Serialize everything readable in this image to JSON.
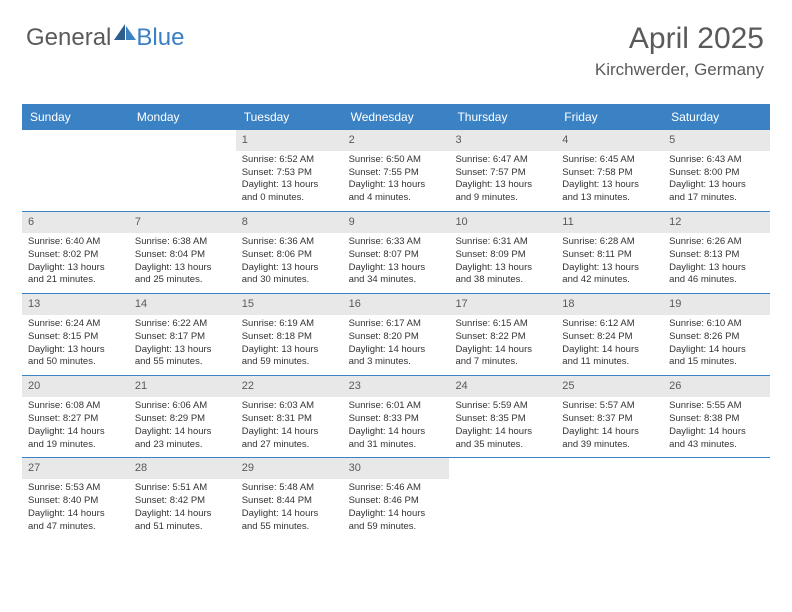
{
  "brand": {
    "part1": "General",
    "part2": "Blue"
  },
  "header": {
    "month_title": "April 2025",
    "location": "Kirchwerder, Germany"
  },
  "colors": {
    "header_bg": "#3b82c4",
    "header_text": "#ffffff",
    "daynum_bg": "#e8e8e8",
    "text": "#333333",
    "muted": "#5a5a5a",
    "row_border": "#3b82c4"
  },
  "typography": {
    "month_title_fontsize": 30,
    "location_fontsize": 17,
    "day_header_fontsize": 12,
    "daynum_fontsize": 11,
    "cell_fontsize": 9.5
  },
  "day_headers": [
    "Sunday",
    "Monday",
    "Tuesday",
    "Wednesday",
    "Thursday",
    "Friday",
    "Saturday"
  ],
  "weeks": [
    [
      {
        "empty": true
      },
      {
        "empty": true
      },
      {
        "day": "1",
        "sunrise": "Sunrise: 6:52 AM",
        "sunset": "Sunset: 7:53 PM",
        "daylight": "Daylight: 13 hours and 0 minutes."
      },
      {
        "day": "2",
        "sunrise": "Sunrise: 6:50 AM",
        "sunset": "Sunset: 7:55 PM",
        "daylight": "Daylight: 13 hours and 4 minutes."
      },
      {
        "day": "3",
        "sunrise": "Sunrise: 6:47 AM",
        "sunset": "Sunset: 7:57 PM",
        "daylight": "Daylight: 13 hours and 9 minutes."
      },
      {
        "day": "4",
        "sunrise": "Sunrise: 6:45 AM",
        "sunset": "Sunset: 7:58 PM",
        "daylight": "Daylight: 13 hours and 13 minutes."
      },
      {
        "day": "5",
        "sunrise": "Sunrise: 6:43 AM",
        "sunset": "Sunset: 8:00 PM",
        "daylight": "Daylight: 13 hours and 17 minutes."
      }
    ],
    [
      {
        "day": "6",
        "sunrise": "Sunrise: 6:40 AM",
        "sunset": "Sunset: 8:02 PM",
        "daylight": "Daylight: 13 hours and 21 minutes."
      },
      {
        "day": "7",
        "sunrise": "Sunrise: 6:38 AM",
        "sunset": "Sunset: 8:04 PM",
        "daylight": "Daylight: 13 hours and 25 minutes."
      },
      {
        "day": "8",
        "sunrise": "Sunrise: 6:36 AM",
        "sunset": "Sunset: 8:06 PM",
        "daylight": "Daylight: 13 hours and 30 minutes."
      },
      {
        "day": "9",
        "sunrise": "Sunrise: 6:33 AM",
        "sunset": "Sunset: 8:07 PM",
        "daylight": "Daylight: 13 hours and 34 minutes."
      },
      {
        "day": "10",
        "sunrise": "Sunrise: 6:31 AM",
        "sunset": "Sunset: 8:09 PM",
        "daylight": "Daylight: 13 hours and 38 minutes."
      },
      {
        "day": "11",
        "sunrise": "Sunrise: 6:28 AM",
        "sunset": "Sunset: 8:11 PM",
        "daylight": "Daylight: 13 hours and 42 minutes."
      },
      {
        "day": "12",
        "sunrise": "Sunrise: 6:26 AM",
        "sunset": "Sunset: 8:13 PM",
        "daylight": "Daylight: 13 hours and 46 minutes."
      }
    ],
    [
      {
        "day": "13",
        "sunrise": "Sunrise: 6:24 AM",
        "sunset": "Sunset: 8:15 PM",
        "daylight": "Daylight: 13 hours and 50 minutes."
      },
      {
        "day": "14",
        "sunrise": "Sunrise: 6:22 AM",
        "sunset": "Sunset: 8:17 PM",
        "daylight": "Daylight: 13 hours and 55 minutes."
      },
      {
        "day": "15",
        "sunrise": "Sunrise: 6:19 AM",
        "sunset": "Sunset: 8:18 PM",
        "daylight": "Daylight: 13 hours and 59 minutes."
      },
      {
        "day": "16",
        "sunrise": "Sunrise: 6:17 AM",
        "sunset": "Sunset: 8:20 PM",
        "daylight": "Daylight: 14 hours and 3 minutes."
      },
      {
        "day": "17",
        "sunrise": "Sunrise: 6:15 AM",
        "sunset": "Sunset: 8:22 PM",
        "daylight": "Daylight: 14 hours and 7 minutes."
      },
      {
        "day": "18",
        "sunrise": "Sunrise: 6:12 AM",
        "sunset": "Sunset: 8:24 PM",
        "daylight": "Daylight: 14 hours and 11 minutes."
      },
      {
        "day": "19",
        "sunrise": "Sunrise: 6:10 AM",
        "sunset": "Sunset: 8:26 PM",
        "daylight": "Daylight: 14 hours and 15 minutes."
      }
    ],
    [
      {
        "day": "20",
        "sunrise": "Sunrise: 6:08 AM",
        "sunset": "Sunset: 8:27 PM",
        "daylight": "Daylight: 14 hours and 19 minutes."
      },
      {
        "day": "21",
        "sunrise": "Sunrise: 6:06 AM",
        "sunset": "Sunset: 8:29 PM",
        "daylight": "Daylight: 14 hours and 23 minutes."
      },
      {
        "day": "22",
        "sunrise": "Sunrise: 6:03 AM",
        "sunset": "Sunset: 8:31 PM",
        "daylight": "Daylight: 14 hours and 27 minutes."
      },
      {
        "day": "23",
        "sunrise": "Sunrise: 6:01 AM",
        "sunset": "Sunset: 8:33 PM",
        "daylight": "Daylight: 14 hours and 31 minutes."
      },
      {
        "day": "24",
        "sunrise": "Sunrise: 5:59 AM",
        "sunset": "Sunset: 8:35 PM",
        "daylight": "Daylight: 14 hours and 35 minutes."
      },
      {
        "day": "25",
        "sunrise": "Sunrise: 5:57 AM",
        "sunset": "Sunset: 8:37 PM",
        "daylight": "Daylight: 14 hours and 39 minutes."
      },
      {
        "day": "26",
        "sunrise": "Sunrise: 5:55 AM",
        "sunset": "Sunset: 8:38 PM",
        "daylight": "Daylight: 14 hours and 43 minutes."
      }
    ],
    [
      {
        "day": "27",
        "sunrise": "Sunrise: 5:53 AM",
        "sunset": "Sunset: 8:40 PM",
        "daylight": "Daylight: 14 hours and 47 minutes."
      },
      {
        "day": "28",
        "sunrise": "Sunrise: 5:51 AM",
        "sunset": "Sunset: 8:42 PM",
        "daylight": "Daylight: 14 hours and 51 minutes."
      },
      {
        "day": "29",
        "sunrise": "Sunrise: 5:48 AM",
        "sunset": "Sunset: 8:44 PM",
        "daylight": "Daylight: 14 hours and 55 minutes."
      },
      {
        "day": "30",
        "sunrise": "Sunrise: 5:46 AM",
        "sunset": "Sunset: 8:46 PM",
        "daylight": "Daylight: 14 hours and 59 minutes."
      },
      {
        "empty": true
      },
      {
        "empty": true
      },
      {
        "empty": true
      }
    ]
  ]
}
